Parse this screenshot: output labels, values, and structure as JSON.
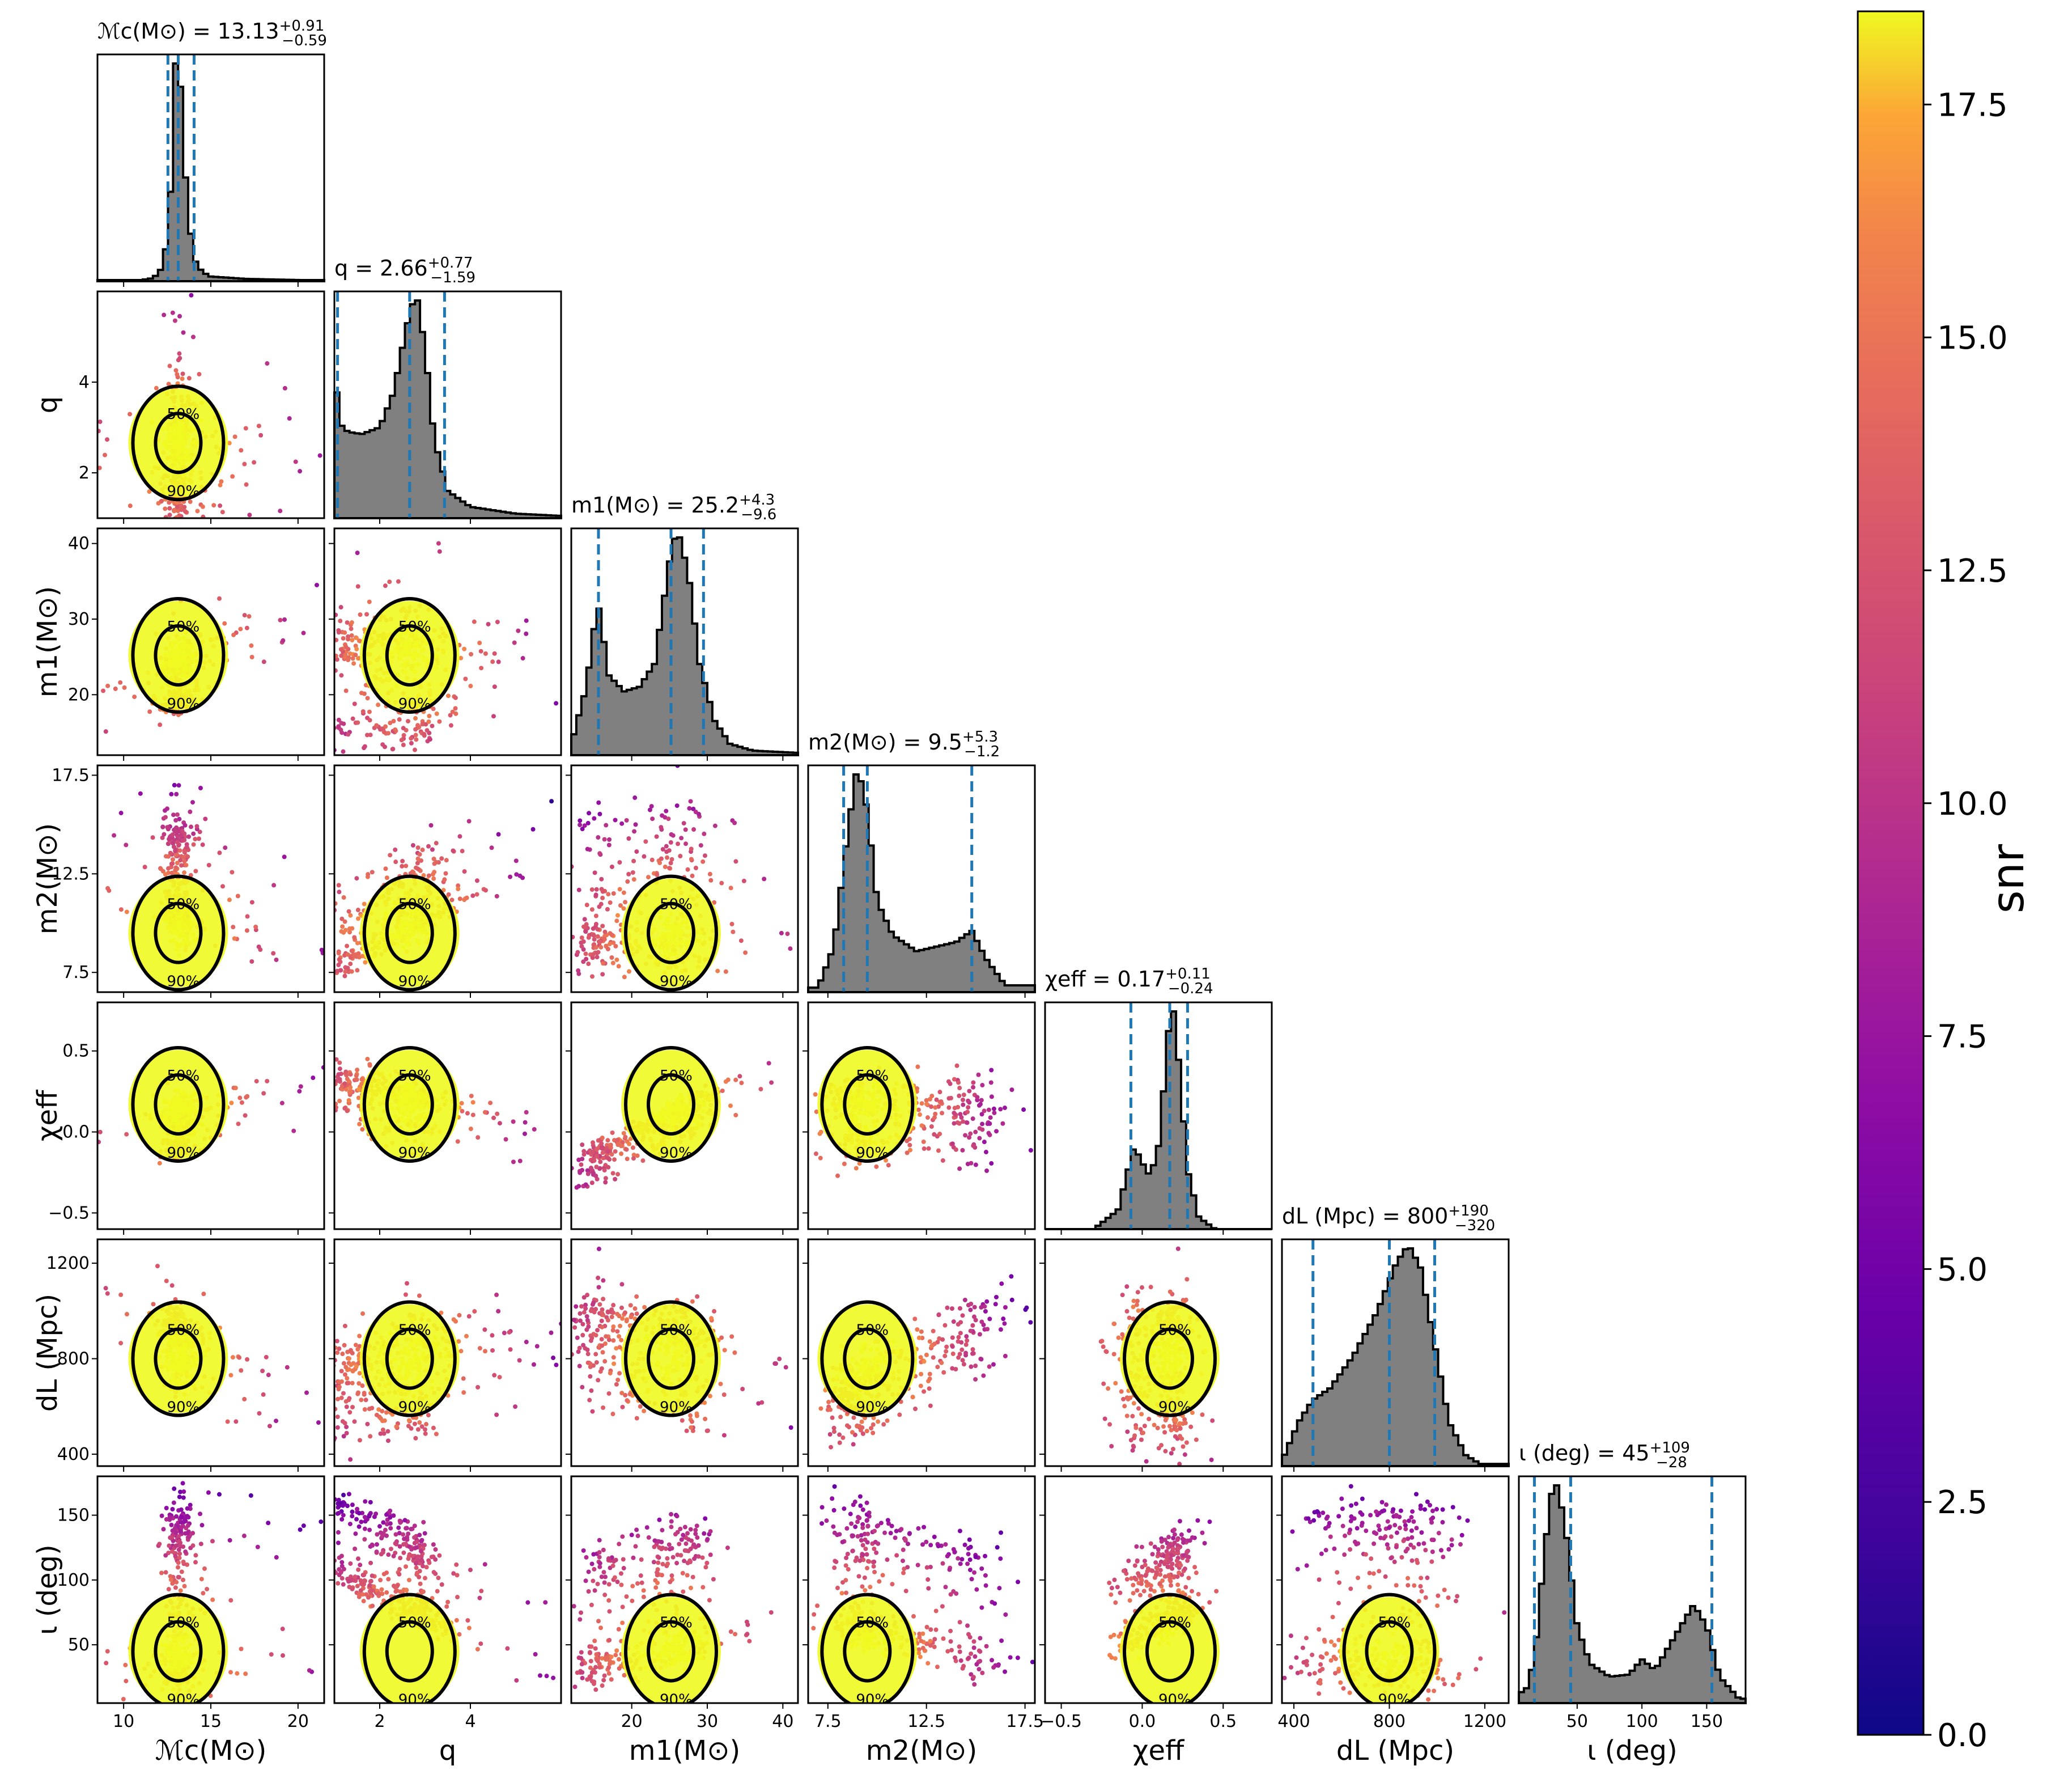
{
  "chart_data": {
    "type": "corner",
    "parameters": [
      {
        "key": "mc",
        "label": "ℳc(M⊙)",
        "lim": [
          8.5,
          21.5
        ],
        "ticks": [
          10,
          15,
          20
        ],
        "ticklabels": [
          "10",
          "15",
          "20"
        ],
        "title": "ℳc(M⊙) = 13.13",
        "title_sup": "+0.91",
        "title_sub": "−0.59",
        "quantiles": [
          12.54,
          13.13,
          14.04
        ],
        "hist": {
          "x": [
            11,
            11.5,
            12,
            12.3,
            12.6,
            12.9,
            13.0,
            13.2,
            13.4,
            13.7,
            14.0,
            14.5,
            15,
            17,
            20
          ],
          "h": [
            0.005,
            0.01,
            0.03,
            0.08,
            0.25,
            0.7,
            1.0,
            0.95,
            0.6,
            0.3,
            0.1,
            0.04,
            0.02,
            0.01,
            0.005
          ]
        }
      },
      {
        "key": "q",
        "label": "q",
        "lim": [
          1,
          6
        ],
        "ticks": [
          2,
          4
        ],
        "ticklabels": [
          "2",
          "4"
        ],
        "title": "q = 2.66",
        "title_sup": "+0.77",
        "title_sub": "−1.59",
        "quantiles": [
          1.07,
          2.66,
          3.43
        ],
        "hist": {
          "x": [
            1.0,
            1.1,
            1.3,
            1.6,
            2.0,
            2.3,
            2.6,
            2.8,
            3.0,
            3.2,
            3.5,
            4.0,
            5.0,
            6.0
          ],
          "h": [
            0.72,
            0.42,
            0.38,
            0.37,
            0.4,
            0.55,
            0.85,
            1.0,
            0.75,
            0.35,
            0.12,
            0.05,
            0.02,
            0.01
          ]
        }
      },
      {
        "key": "m1",
        "label": "m1(M⊙)",
        "lim": [
          12,
          42
        ],
        "ticks": [
          20,
          30,
          40
        ],
        "ticklabels": [
          "20",
          "30",
          "40"
        ],
        "title": "m1(M⊙) = 25.2",
        "title_sup": "+4.3",
        "title_sub": "−9.6",
        "quantiles": [
          15.6,
          25.2,
          29.5
        ],
        "hist": {
          "x": [
            12,
            14,
            15.5,
            17,
            19,
            21,
            23,
            25,
            26,
            27.5,
            29,
            31,
            33,
            36,
            42
          ],
          "h": [
            0.05,
            0.3,
            0.68,
            0.35,
            0.28,
            0.3,
            0.4,
            0.85,
            1.0,
            0.8,
            0.4,
            0.15,
            0.05,
            0.02,
            0.01
          ]
        }
      },
      {
        "key": "m2",
        "label": "m2(M⊙)",
        "lim": [
          6.5,
          18
        ],
        "ticks": [
          7.5,
          12.5,
          17.5
        ],
        "ticklabels": [
          "7.5",
          "12.5",
          "17.5"
        ],
        "title": "m2(M⊙) = 9.5",
        "title_sup": "+5.3",
        "title_sub": "−1.2",
        "quantiles": [
          8.3,
          9.5,
          14.8
        ],
        "hist": {
          "x": [
            7,
            7.8,
            8.5,
            9.0,
            9.5,
            10.0,
            10.8,
            12,
            13,
            14,
            14.8,
            15.5,
            16.5
          ],
          "h": [
            0.02,
            0.2,
            0.7,
            1.0,
            0.8,
            0.4,
            0.25,
            0.18,
            0.2,
            0.22,
            0.27,
            0.15,
            0.03
          ]
        }
      },
      {
        "key": "chi",
        "label": "χeff",
        "lim": [
          -0.6,
          0.8
        ],
        "ticks": [
          -0.5,
          0,
          0.5
        ],
        "ticklabels": [
          "−0.5",
          "0.0",
          "0.5"
        ],
        "title": "χeff = 0.17",
        "title_sup": "+0.11",
        "title_sub": "−0.24",
        "quantiles": [
          -0.07,
          0.17,
          0.28
        ],
        "hist": {
          "x": [
            -0.3,
            -0.15,
            -0.05,
            0.0,
            0.05,
            0.1,
            0.15,
            0.18,
            0.22,
            0.28,
            0.35,
            0.45
          ],
          "h": [
            0.0,
            0.08,
            0.35,
            0.28,
            0.22,
            0.35,
            0.72,
            1.0,
            0.75,
            0.25,
            0.05,
            0.0
          ]
        }
      },
      {
        "key": "dl",
        "label": "dL (Mpc)",
        "lim": [
          350,
          1300
        ],
        "ticks": [
          400,
          800,
          1200
        ],
        "ticklabels": [
          "400",
          "800",
          "1200"
        ],
        "title": "dL (Mpc) = 800",
        "title_sup": "+190",
        "title_sub": "−320",
        "quantiles": [
          480,
          800,
          990
        ],
        "hist": {
          "x": [
            360,
            420,
            480,
            550,
            650,
            750,
            830,
            880,
            930,
            990,
            1050,
            1120,
            1180
          ],
          "h": [
            0.05,
            0.2,
            0.3,
            0.35,
            0.5,
            0.7,
            0.92,
            1.0,
            0.9,
            0.55,
            0.2,
            0.05,
            0.01
          ]
        }
      },
      {
        "key": "inc",
        "label": "ι (deg)",
        "lim": [
          5,
          180
        ],
        "ticks": [
          50,
          100,
          150
        ],
        "ticklabels": [
          "50",
          "100",
          "150"
        ],
        "title": "ι (deg) = 45",
        "title_sup": "+109",
        "title_sub": "−28",
        "quantiles": [
          17,
          45,
          154
        ],
        "hist": {
          "x": [
            10,
            17,
            25,
            30,
            35,
            42,
            50,
            60,
            75,
            90,
            100,
            110,
            125,
            140,
            150,
            160,
            175
          ],
          "h": [
            0.05,
            0.2,
            0.7,
            0.95,
            1.0,
            0.75,
            0.35,
            0.18,
            0.12,
            0.13,
            0.2,
            0.15,
            0.3,
            0.45,
            0.35,
            0.12,
            0.02
          ]
        }
      }
    ],
    "contour_levels": [
      "50%",
      "90%"
    ],
    "colorbar": {
      "label": "snr",
      "range": [
        0,
        18.5
      ],
      "ticks": [
        0.0,
        2.5,
        5.0,
        7.5,
        10.0,
        12.5,
        15.0,
        17.5
      ],
      "ticklabels": [
        "0.0",
        "2.5",
        "5.0",
        "7.5",
        "10.0",
        "12.5",
        "15.0",
        "17.5"
      ],
      "colormap": "plasma"
    },
    "colors": {
      "histogram_fill": "#808080",
      "quantile_line": "#1f77b4",
      "contour": "#000000"
    }
  }
}
